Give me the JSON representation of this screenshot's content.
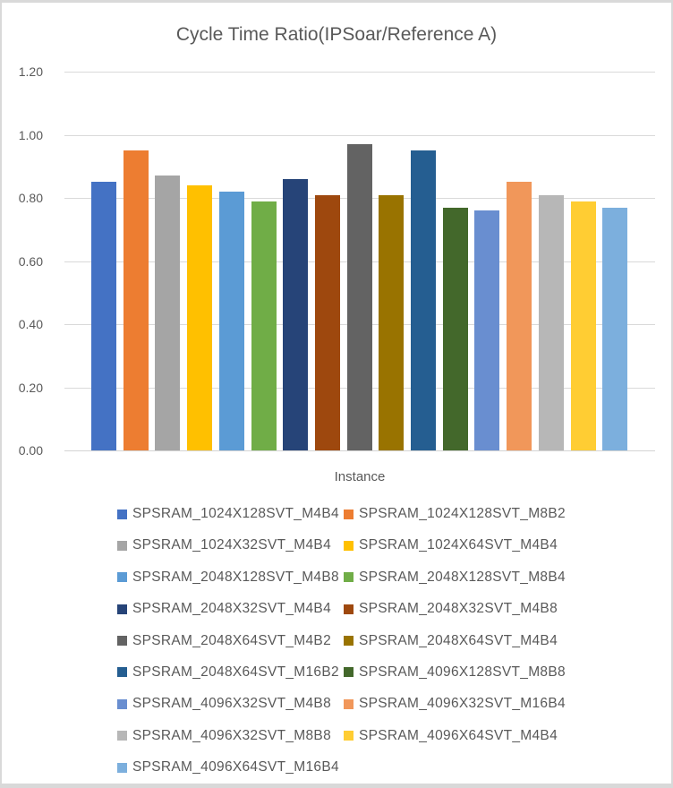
{
  "chart_data": {
    "type": "bar",
    "title": "Cycle Time Ratio(IPSoar/Reference A)",
    "xlabel": "Instance",
    "ylabel": "",
    "ylim": [
      0,
      1.2
    ],
    "yticks": [
      "0.00",
      "0.20",
      "0.40",
      "0.60",
      "0.80",
      "1.00",
      "1.20"
    ],
    "grid": true,
    "legend_position": "bottom",
    "series": [
      {
        "name": "SPSRAM_1024X128SVT_M4B4",
        "value": 0.85,
        "color": "#4472C4"
      },
      {
        "name": "SPSRAM_1024X128SVT_M8B2",
        "value": 0.95,
        "color": "#ED7D31"
      },
      {
        "name": "SPSRAM_1024X32SVT_M4B4",
        "value": 0.87,
        "color": "#A5A5A5"
      },
      {
        "name": "SPSRAM_1024X64SVT_M4B4",
        "value": 0.84,
        "color": "#FFC000"
      },
      {
        "name": "SPSRAM_2048X128SVT_M4B8",
        "value": 0.82,
        "color": "#5B9BD5"
      },
      {
        "name": "SPSRAM_2048X128SVT_M8B4",
        "value": 0.79,
        "color": "#70AD47"
      },
      {
        "name": "SPSRAM_2048X32SVT_M4B4",
        "value": 0.86,
        "color": "#264478"
      },
      {
        "name": "SPSRAM_2048X32SVT_M4B8",
        "value": 0.81,
        "color": "#9E480E"
      },
      {
        "name": "SPSRAM_2048X64SVT_M4B2",
        "value": 0.97,
        "color": "#636363"
      },
      {
        "name": "SPSRAM_2048X64SVT_M4B4",
        "value": 0.81,
        "color": "#997300"
      },
      {
        "name": "SPSRAM_2048X64SVT_M16B2",
        "value": 0.95,
        "color": "#255E91"
      },
      {
        "name": "SPSRAM_4096X128SVT_M8B8",
        "value": 0.77,
        "color": "#43682B"
      },
      {
        "name": "SPSRAM_4096X32SVT_M4B8",
        "value": 0.76,
        "color": "#698ED0"
      },
      {
        "name": "SPSRAM_4096X32SVT_M16B4",
        "value": 0.85,
        "color": "#F1975A"
      },
      {
        "name": "SPSRAM_4096X32SVT_M8B8",
        "value": 0.81,
        "color": "#B7B7B7"
      },
      {
        "name": "SPSRAM_4096X64SVT_M4B4",
        "value": 0.79,
        "color": "#FFCD33"
      },
      {
        "name": "SPSRAM_4096X64SVT_M16B4",
        "value": 0.77,
        "color": "#7CAFDD"
      }
    ]
  },
  "colors": {
    "text": "#595959",
    "gridline": "#D9D9D9",
    "background": "#FFFFFF",
    "frame_border": "#D9D9D9"
  }
}
